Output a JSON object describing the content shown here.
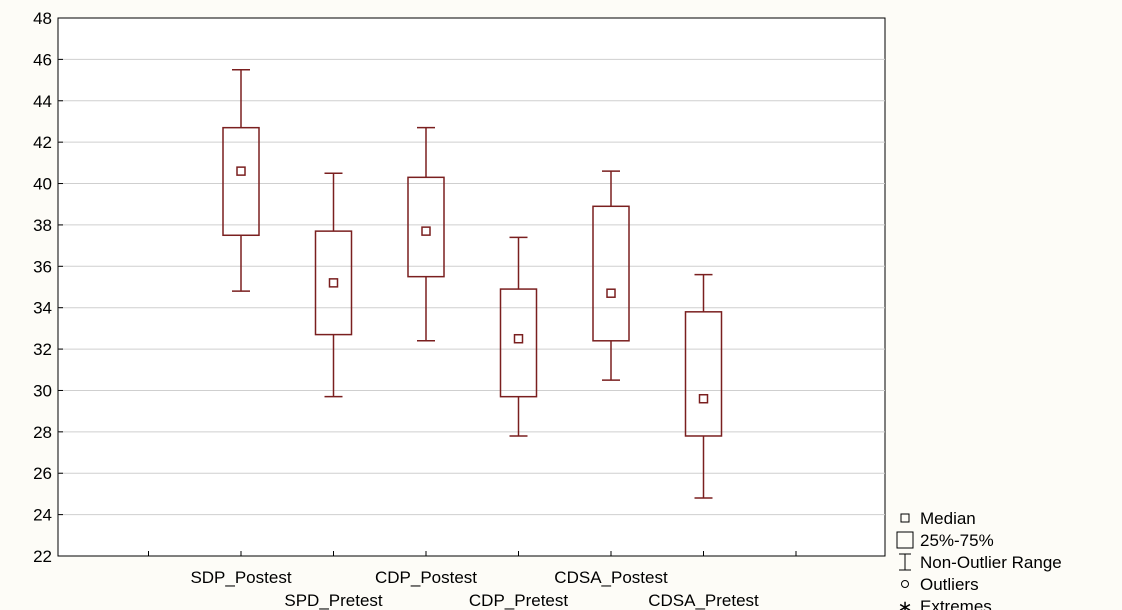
{
  "chart_data": {
    "type": "box",
    "title": "",
    "xlabel": "",
    "ylabel": "",
    "ylim": [
      22,
      48
    ],
    "yticks": [
      22,
      24,
      26,
      28,
      30,
      32,
      34,
      36,
      38,
      40,
      42,
      44,
      46,
      48
    ],
    "grid": true,
    "legend_position": "bottom-right",
    "colors": {
      "box": "#7a1f1f",
      "grid": "#cfcfcf",
      "plot_bg": "#ffffff",
      "page_bg": "#fdfcf7"
    },
    "categories": [
      "SDP_Postest",
      "SPD_Pretest",
      "CDP_Postest",
      "CDP_Pretest",
      "CDSA_Postest",
      "CDSA_Pretest"
    ],
    "boxes": [
      {
        "name": "SDP_Postest",
        "median": 40.6,
        "q1": 37.5,
        "q3": 42.7,
        "whisker_low": 34.8,
        "whisker_high": 45.5
      },
      {
        "name": "SPD_Pretest",
        "median": 35.2,
        "q1": 32.7,
        "q3": 37.7,
        "whisker_low": 29.7,
        "whisker_high": 40.5
      },
      {
        "name": "CDP_Postest",
        "median": 37.7,
        "q1": 35.5,
        "q3": 40.3,
        "whisker_low": 32.4,
        "whisker_high": 42.7
      },
      {
        "name": "CDP_Pretest",
        "median": 32.5,
        "q1": 29.7,
        "q3": 34.9,
        "whisker_low": 27.8,
        "whisker_high": 37.4
      },
      {
        "name": "CDSA_Postest",
        "median": 34.7,
        "q1": 32.4,
        "q3": 38.9,
        "whisker_low": 30.5,
        "whisker_high": 40.6
      },
      {
        "name": "CDSA_Pretest",
        "median": 29.6,
        "q1": 27.8,
        "q3": 33.8,
        "whisker_low": 24.8,
        "whisker_high": 35.6
      }
    ],
    "legend": [
      {
        "icon": "median-square-icon",
        "label": "Median"
      },
      {
        "icon": "box-rect-icon",
        "label": "25%-75%"
      },
      {
        "icon": "whisker-icon",
        "label": "Non-Outlier Range"
      },
      {
        "icon": "outlier-circle-icon",
        "label": "Outliers"
      },
      {
        "icon": "extreme-star-icon",
        "label": "Extremes"
      }
    ]
  }
}
